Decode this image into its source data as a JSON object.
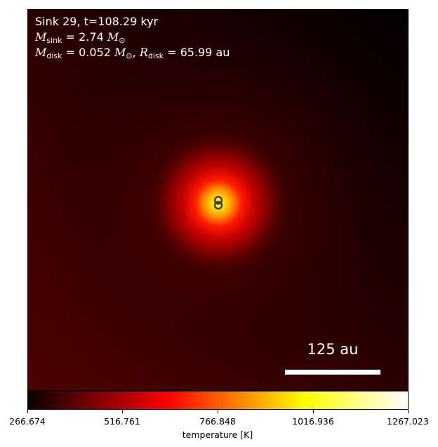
{
  "chart_data": {
    "type": "heatmap",
    "title_line": "Sink 29, t=108.29 kyr",
    "sink_mass": {
      "symbol": "M",
      "subscript": "sink",
      "value": "2.74",
      "unit": "M",
      "unit_subscript": "⊙"
    },
    "disk": {
      "mass_symbol": "M",
      "mass_subscript": "disk",
      "mass_value": "0.052",
      "mass_unit": "M",
      "mass_unit_subscript": "⊙",
      "radius_symbol": "R",
      "radius_subscript": "disk",
      "radius_value": "65.99",
      "radius_unit": "au"
    },
    "scalebar_label": "125 au",
    "colorbar": {
      "label": "temperature [K]",
      "ticks": [
        "266.674",
        "516.761",
        "766.848",
        "1016.936",
        "1267.023"
      ],
      "vmin": 266.674,
      "vmax": 1267.023,
      "colormap": "hot"
    },
    "sink_markers": 2,
    "colors": {
      "background_dark": "#0a0000",
      "field": "#3a0000",
      "hot_core": "#ffff40",
      "scalebar": "#ffffff",
      "marker_edge": "#3c3c3c"
    }
  }
}
